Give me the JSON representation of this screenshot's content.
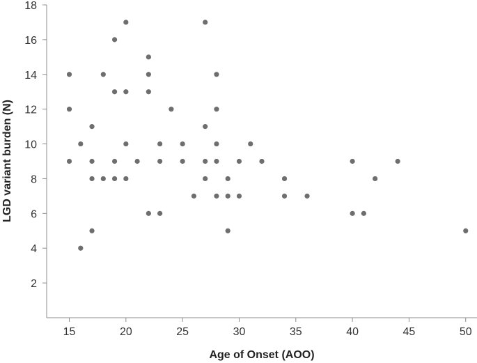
{
  "chart_data": {
    "type": "scatter",
    "xlabel": "Age of Onset (AOO)",
    "ylabel": "LGD variant burden (N)",
    "xlim": [
      13,
      51
    ],
    "ylim": [
      0,
      18
    ],
    "xticks": [
      15,
      20,
      25,
      30,
      35,
      40,
      45,
      50
    ],
    "yticks": [
      2,
      4,
      6,
      8,
      10,
      12,
      14,
      16,
      18
    ],
    "grid": false,
    "legend": "none",
    "marker_color": "#6e6e6e",
    "points": [
      {
        "x": 15,
        "y": 14
      },
      {
        "x": 15,
        "y": 12
      },
      {
        "x": 15,
        "y": 9
      },
      {
        "x": 16,
        "y": 10
      },
      {
        "x": 16,
        "y": 4
      },
      {
        "x": 17,
        "y": 11
      },
      {
        "x": 17,
        "y": 9
      },
      {
        "x": 17,
        "y": 8
      },
      {
        "x": 17,
        "y": 5
      },
      {
        "x": 18,
        "y": 14
      },
      {
        "x": 18,
        "y": 8
      },
      {
        "x": 19,
        "y": 16
      },
      {
        "x": 19,
        "y": 13
      },
      {
        "x": 19,
        "y": 9
      },
      {
        "x": 19,
        "y": 8
      },
      {
        "x": 20,
        "y": 17
      },
      {
        "x": 20,
        "y": 13
      },
      {
        "x": 20,
        "y": 10
      },
      {
        "x": 20,
        "y": 8
      },
      {
        "x": 21,
        "y": 9
      },
      {
        "x": 22,
        "y": 15
      },
      {
        "x": 22,
        "y": 14
      },
      {
        "x": 22,
        "y": 13
      },
      {
        "x": 22,
        "y": 6
      },
      {
        "x": 23,
        "y": 10
      },
      {
        "x": 23,
        "y": 9
      },
      {
        "x": 23,
        "y": 6
      },
      {
        "x": 24,
        "y": 12
      },
      {
        "x": 25,
        "y": 10
      },
      {
        "x": 25,
        "y": 9
      },
      {
        "x": 26,
        "y": 7
      },
      {
        "x": 27,
        "y": 17
      },
      {
        "x": 27,
        "y": 11
      },
      {
        "x": 27,
        "y": 9
      },
      {
        "x": 27,
        "y": 8
      },
      {
        "x": 28,
        "y": 14
      },
      {
        "x": 28,
        "y": 12
      },
      {
        "x": 28,
        "y": 10
      },
      {
        "x": 28,
        "y": 9
      },
      {
        "x": 28,
        "y": 7
      },
      {
        "x": 29,
        "y": 8
      },
      {
        "x": 29,
        "y": 7
      },
      {
        "x": 29,
        "y": 5
      },
      {
        "x": 30,
        "y": 9
      },
      {
        "x": 30,
        "y": 7
      },
      {
        "x": 31,
        "y": 10
      },
      {
        "x": 32,
        "y": 9
      },
      {
        "x": 34,
        "y": 8
      },
      {
        "x": 34,
        "y": 7
      },
      {
        "x": 36,
        "y": 7
      },
      {
        "x": 40,
        "y": 9
      },
      {
        "x": 40,
        "y": 6
      },
      {
        "x": 41,
        "y": 6
      },
      {
        "x": 42,
        "y": 8
      },
      {
        "x": 44,
        "y": 9
      },
      {
        "x": 50,
        "y": 5
      }
    ]
  }
}
